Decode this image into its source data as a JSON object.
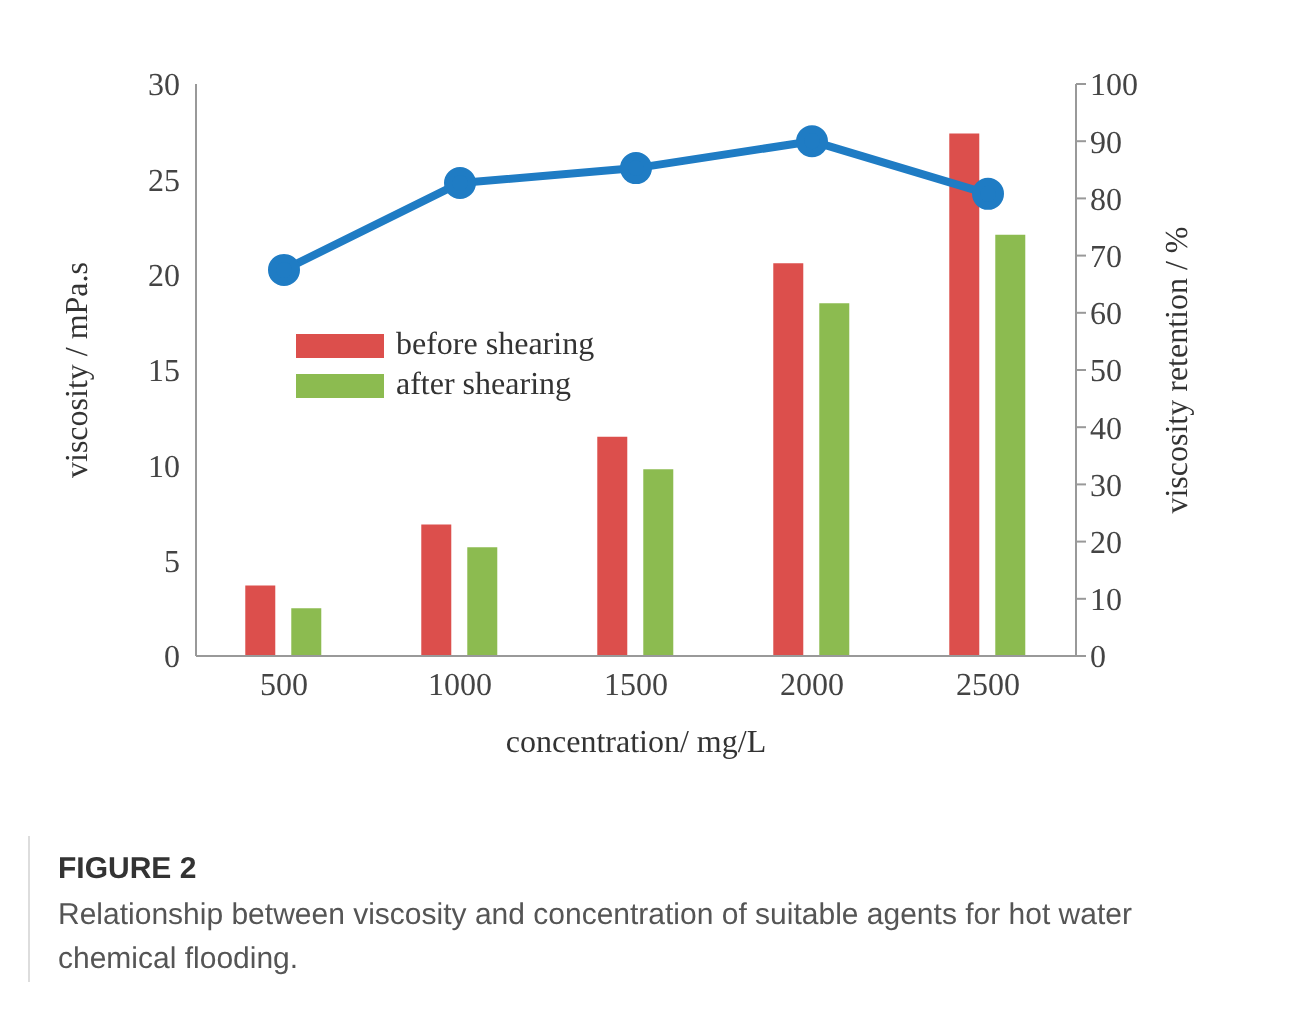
{
  "chart_data": {
    "type": "bar",
    "title": "FIGURE 2",
    "subtitle": "Relationship between viscosity and concentration of suitable agents for hot water chemical flooding.",
    "xlabel": "concentration/ mg/L",
    "ylabel": "viscosity / mPa.s",
    "y2label": "viscosity retention / %",
    "categories": [
      "500",
      "1000",
      "1500",
      "2000",
      "2500"
    ],
    "series": [
      {
        "name": "before shearing",
        "color": "#dc4f4c",
        "values": [
          3.7,
          6.9,
          11.5,
          20.6,
          27.4
        ]
      },
      {
        "name": "after shearing",
        "color": "#8cbb50",
        "values": [
          2.5,
          5.7,
          9.8,
          18.5,
          22.1
        ]
      },
      {
        "type": "line",
        "axis": "y2",
        "color": "#1f7cc4",
        "values": [
          67.5,
          82.7,
          85.3,
          90,
          80.8
        ]
      }
    ],
    "ylim": [
      0,
      30
    ],
    "yticks": [
      0,
      5,
      10,
      15,
      20,
      25,
      30
    ],
    "y2lim": [
      0,
      100
    ],
    "y2ticks": [
      0,
      10,
      20,
      30,
      40,
      50,
      60,
      70,
      80,
      90,
      100
    ],
    "legend": "top left",
    "marker": "circle"
  }
}
